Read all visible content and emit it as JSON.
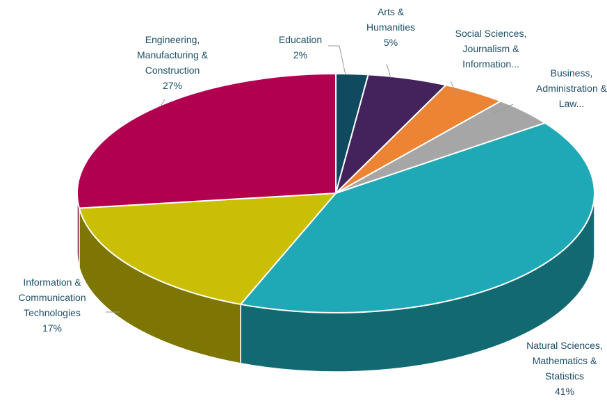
{
  "chart_data": {
    "type": "pie",
    "style": "3d",
    "title": "",
    "slices": [
      {
        "label": "Education",
        "value": 2,
        "color": "#0f4a5e",
        "label_lines": [
          "Education",
          "2%"
        ]
      },
      {
        "label": "Arts & Humanities",
        "value": 5,
        "color": "#44235c",
        "label_lines": [
          "Arts &",
          "Humanities",
          "5%"
        ]
      },
      {
        "label": "Social Sciences, Journalism & Information...",
        "value": 4,
        "color": "#ec8434",
        "label_lines": [
          "Social Sciences,",
          "Journalism &",
          "Information..."
        ]
      },
      {
        "label": "Business, Administration & Law...",
        "value": 4,
        "color": "#a6a6a6",
        "label_lines": [
          "Business,",
          "Administration &",
          "Law..."
        ]
      },
      {
        "label": "Natural Sciences, Mathematics & Statistics",
        "value": 41,
        "color": "#1fa9b6",
        "label_lines": [
          "Natural Sciences,",
          "Mathematics &",
          "Statistics",
          "41%"
        ]
      },
      {
        "label": "Information & Communication Technologies",
        "value": 17,
        "color": "#cabf05",
        "label_lines": [
          "Information &",
          "Communication",
          "Technologies",
          "17%"
        ]
      },
      {
        "label": "Engineering, Manufacturing & Construction",
        "value": 27,
        "color": "#b0004f",
        "label_lines": [
          "Engineering,",
          "Manufacturing &",
          "Construction",
          "27%"
        ]
      }
    ]
  }
}
